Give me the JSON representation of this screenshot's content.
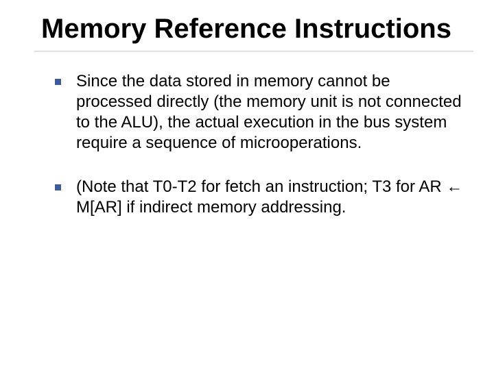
{
  "slide": {
    "title": "Memory Reference Instructions",
    "title_fontsize": 40,
    "title_weight": 700,
    "title_color": "#000000",
    "bullets": [
      {
        "text": "Since the data stored in memory cannot be processed directly (the memory unit is not connected to the ALU), the actual execution in the bus system require a sequence of microoperations."
      },
      {
        "text": "(Note that T0-T2 for fetch an instruction; T3 for AR ← M[AR] if indirect memory addressing."
      }
    ],
    "body_fontsize": 24,
    "body_color": "#000000",
    "bullet_marker_color": "#3b5c9f",
    "bullet_marker_size": 9,
    "background_color": "#ffffff",
    "divider_color": "#d0d0d0",
    "font_family": "Verdana"
  }
}
